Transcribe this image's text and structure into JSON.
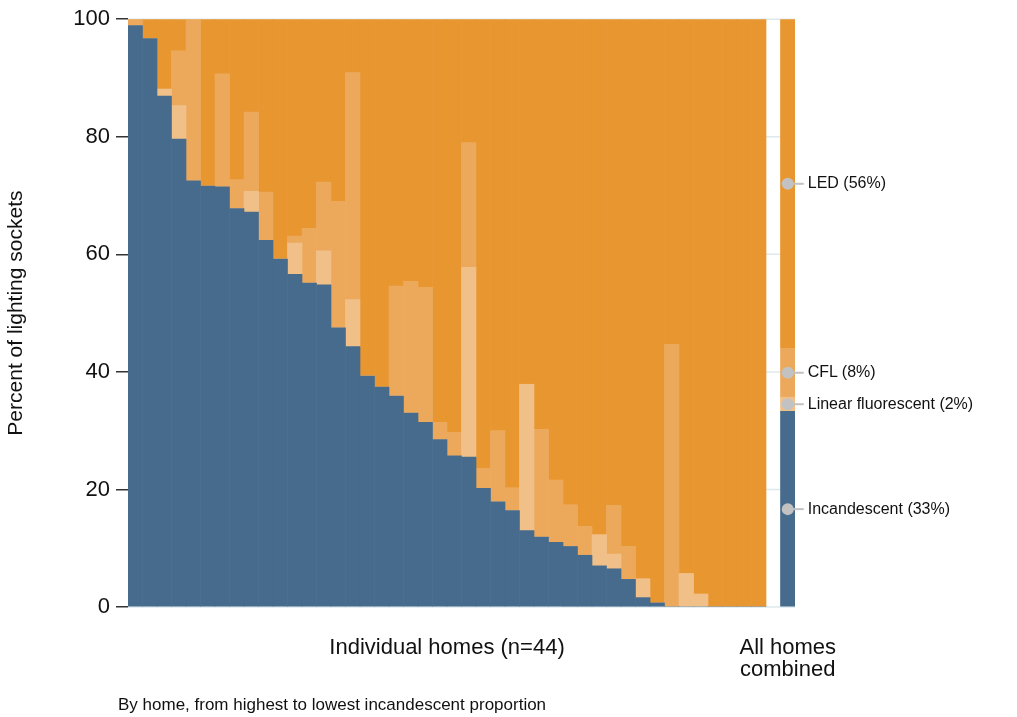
{
  "chart_data": {
    "type": "bar",
    "stacked": true,
    "ylabel": "Percent of lighting sockets",
    "xlabel": "Individual homes (n=44)",
    "categories": [
      null,
      null,
      null,
      null,
      null,
      null,
      null,
      null,
      null,
      null,
      null,
      null,
      null,
      null,
      null,
      null,
      null,
      null,
      null,
      null,
      null,
      null,
      null,
      null,
      null,
      null,
      null,
      null,
      null,
      null,
      null,
      null,
      null,
      null,
      null,
      null,
      null,
      null,
      null,
      null,
      null,
      null,
      null,
      null,
      null,
      "All homes combined"
    ],
    "series": [
      {
        "color": "#476b8c",
        "values": [
          98.9,
          96.7,
          86.9,
          79.6,
          72.5,
          71.6,
          71.5,
          67.8,
          67.2,
          62.4,
          59.2,
          56.6,
          55.1,
          54.8,
          47.5,
          44.3,
          39.3,
          37.4,
          35.9,
          33.0,
          31.4,
          28.5,
          25.7,
          25.5,
          20.2,
          17.9,
          16.4,
          13.0,
          11.9,
          11.0,
          10.3,
          8.8,
          7.0,
          6.5,
          4.7,
          1.6,
          0.7,
          0,
          0,
          0,
          0,
          0,
          0,
          0,
          null,
          33.3
        ]
      },
      {
        "color": "#f0c088",
        "values": [
          0,
          0,
          1.2,
          5.7,
          0,
          0,
          0,
          0,
          3.5,
          0,
          0,
          5.3,
          0,
          5.8,
          0,
          8.0,
          0,
          0,
          0,
          0,
          0,
          0,
          0,
          32.3,
          0,
          0,
          0,
          24.9,
          0,
          0,
          0,
          0,
          5.3,
          2.5,
          0,
          3.2,
          0,
          0,
          5.7,
          2.2,
          0,
          0,
          0,
          0,
          null,
          2.4
        ]
      },
      {
        "color": "#eca95c",
        "values": [
          1.1,
          0,
          0,
          9.3,
          27.5,
          0,
          19.2,
          4.9,
          13.5,
          8.2,
          0,
          1.2,
          9.3,
          11.7,
          21.5,
          38.6,
          0,
          0,
          18.7,
          22.4,
          23.0,
          2.9,
          4.0,
          21.2,
          3.4,
          12.1,
          3.9,
          0,
          18.3,
          10.6,
          7.1,
          4.9,
          0,
          8.3,
          5.6,
          0,
          0,
          44.7,
          0,
          0,
          0,
          0,
          0,
          0,
          null,
          8.3
        ]
      },
      {
        "color": "#e8962f",
        "values": [
          0,
          3.3,
          11.9,
          5.4,
          0,
          28.4,
          9.3,
          27.3,
          15.8,
          29.4,
          40.8,
          36.9,
          35.6,
          27.7,
          31.0,
          9.1,
          60.7,
          62.6,
          45.4,
          44.6,
          45.6,
          68.6,
          70.3,
          21.0,
          76.4,
          70.0,
          79.7,
          62.1,
          69.8,
          78.4,
          82.6,
          86.3,
          87.7,
          82.7,
          89.7,
          95.2,
          99.3,
          55.3,
          94.3,
          97.8,
          100,
          100,
          100,
          100,
          null,
          56.0
        ]
      }
    ],
    "ylim": [
      0,
      100
    ],
    "yticks": [
      0,
      20,
      40,
      60,
      80,
      100
    ],
    "grid": "y",
    "legend": false,
    "annotations": [
      "LED (56%)",
      "CFL (8%)",
      "Linear fluorescent (2%)",
      "Incandescent (33%)",
      "By home, from highest to lowest incandescent proportion"
    ]
  }
}
